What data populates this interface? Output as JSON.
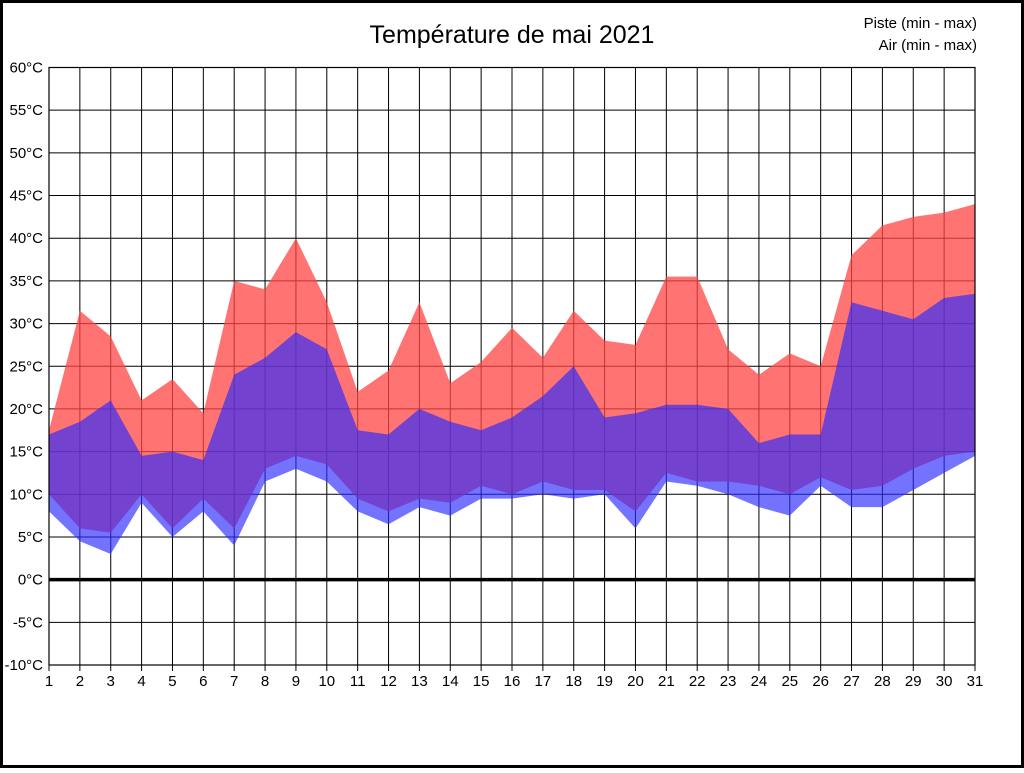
{
  "title": "Température de mai 2021",
  "legend": {
    "piste": "Piste (min - max)",
    "air": "Air (min - max)"
  },
  "legend_colors": {
    "piste_text": "#ff0000",
    "air_text": "#0000ee"
  },
  "chart_data": {
    "type": "area",
    "subtype": "min-max-range-bands",
    "title": "Température de mai 2021",
    "x": [
      1,
      2,
      3,
      4,
      5,
      6,
      7,
      8,
      9,
      10,
      11,
      12,
      13,
      14,
      15,
      16,
      17,
      18,
      19,
      20,
      21,
      22,
      23,
      24,
      25,
      26,
      27,
      28,
      29,
      30,
      31
    ],
    "xtick_labels": [
      "1",
      "2",
      "3",
      "4",
      "5",
      "6",
      "7",
      "8",
      "9",
      "10",
      "11",
      "12",
      "13",
      "14",
      "15",
      "16",
      "17",
      "18",
      "19",
      "20",
      "21",
      "22",
      "23",
      "24",
      "25",
      "26",
      "27",
      "28",
      "29",
      "30",
      "31"
    ],
    "ylim": [
      -10,
      60
    ],
    "ytick_step": 5,
    "yticks": [
      {
        "value": 60,
        "label": "60°C"
      },
      {
        "value": 55,
        "label": "55°C"
      },
      {
        "value": 50,
        "label": "50°C"
      },
      {
        "value": 45,
        "label": "45°C"
      },
      {
        "value": 40,
        "label": "40°C"
      },
      {
        "value": 35,
        "label": "35°C"
      },
      {
        "value": 30,
        "label": "30°C"
      },
      {
        "value": 25,
        "label": "25°C"
      },
      {
        "value": 20,
        "label": "20°C"
      },
      {
        "value": 15,
        "label": "15°C"
      },
      {
        "value": 10,
        "label": "10°C"
      },
      {
        "value": 5,
        "label": "5°C"
      },
      {
        "value": 0,
        "label": "0°C"
      },
      {
        "value": -5,
        "label": "-5°C"
      },
      {
        "value": -10,
        "label": "-10°C"
      }
    ],
    "grid": true,
    "zero_line": true,
    "legend_position": "top-right",
    "series": [
      {
        "name": "Piste (min - max)",
        "fill_color": "#ff4444",
        "fill_opacity": 0.75,
        "min": [
          10,
          6,
          5.5,
          10,
          6,
          9.5,
          6,
          13,
          14.5,
          13.5,
          9.5,
          8,
          9.5,
          9,
          11,
          10,
          11.5,
          10.5,
          10.5,
          8,
          12.5,
          11.5,
          11.5,
          11,
          10,
          12,
          10.5,
          11,
          13,
          14.5,
          15
        ],
        "max": [
          17.5,
          31.5,
          28.5,
          21,
          23.5,
          19.5,
          35,
          34,
          40,
          32.5,
          22,
          24.5,
          32.5,
          23,
          25.5,
          29.5,
          26,
          31.5,
          28,
          27.5,
          35.5,
          35.5,
          27,
          24,
          26.5,
          25,
          38,
          41.5,
          42.5,
          43,
          44
        ]
      },
      {
        "name": "Air (min - max)",
        "fill_color": "#2b2bff",
        "fill_opacity": 0.66,
        "min": [
          8,
          4.5,
          3,
          9,
          5,
          8,
          4,
          11.5,
          13,
          11.5,
          8,
          6.5,
          8.5,
          7.5,
          9.5,
          9.5,
          10,
          9.5,
          10,
          6,
          11.5,
          11,
          10,
          8.5,
          7.5,
          11,
          8.5,
          8.5,
          10.5,
          12.5,
          14.5
        ],
        "max": [
          17,
          18.5,
          21,
          14.5,
          15,
          14,
          24,
          26,
          29,
          27,
          17.5,
          17,
          20,
          18.5,
          17.5,
          19,
          21.5,
          25,
          19,
          19.5,
          20.5,
          20.5,
          20,
          16,
          17,
          17,
          32.5,
          31.5,
          30.5,
          33,
          33.5
        ]
      }
    ]
  }
}
